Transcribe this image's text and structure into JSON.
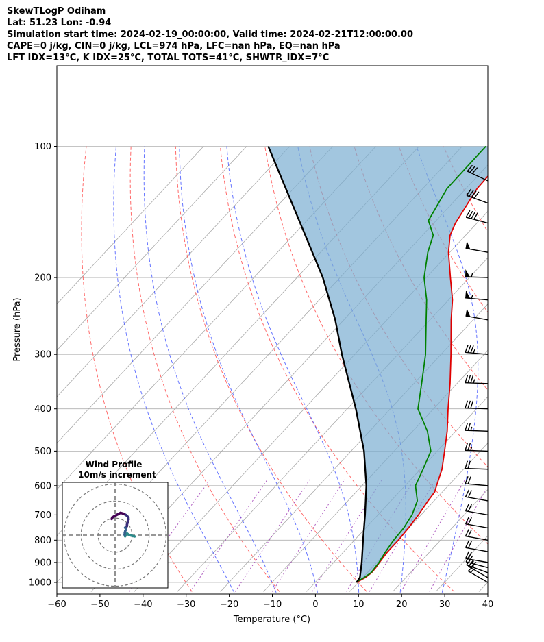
{
  "header": {
    "lines": [
      "SkewTLogP Odiham",
      "Lat: 51.23   Lon: -0.94",
      "Simulation start time: 2024-02-19_00:00:00, Valid time: 2024-02-21T12:00:00.00",
      "CAPE=0 j/kg, CIN=0 j/kg, LCL=974 hPa, LFC=nan hPa, EQ=nan hPa",
      "LFT IDX=13°C, K IDX=25°C, TOTAL TOTS=41°C, SHWTR_IDX=7°C"
    ]
  },
  "chart_data": {
    "type": "line",
    "subtype": "skew-t log-p",
    "xlabel": "Temperature (°C)",
    "ylabel": "Pressure (hPa)",
    "xlim": [
      -60,
      40
    ],
    "ylim": [
      1050,
      100
    ],
    "x_ticks": [
      -60,
      -50,
      -40,
      -30,
      -20,
      -10,
      0,
      10,
      20,
      30,
      40
    ],
    "x_tick_labels": [
      "−60",
      "−50",
      "−40",
      "−30",
      "−20",
      "−10",
      "0",
      "10",
      "20",
      "30",
      "40"
    ],
    "y_ticks": [
      1000,
      900,
      800,
      700,
      600,
      500,
      400,
      300,
      200,
      100
    ],
    "y_tick_labels": [
      "1000",
      "900",
      "800",
      "700",
      "600",
      "500",
      "400",
      "300",
      "200",
      "100"
    ],
    "y_scale": "log",
    "grid": true,
    "series": [
      {
        "role": "temperature",
        "color": "#e00000",
        "points": [
          [
            1000,
            9.6
          ],
          [
            975,
            10.6
          ],
          [
            950,
            11.0
          ],
          [
            925,
            10.9
          ],
          [
            900,
            10.6
          ],
          [
            850,
            10.2
          ],
          [
            800,
            10.2
          ],
          [
            750,
            9.9
          ],
          [
            700,
            9.4
          ],
          [
            650,
            8.6
          ],
          [
            620,
            8.2
          ],
          [
            600,
            7.3
          ],
          [
            550,
            5.0
          ],
          [
            500,
            1.7
          ],
          [
            450,
            -2.0
          ],
          [
            400,
            -6.6
          ],
          [
            350,
            -11.6
          ],
          [
            300,
            -17.7
          ],
          [
            250,
            -25.1
          ],
          [
            225,
            -29.1
          ],
          [
            200,
            -34.4
          ],
          [
            175,
            -40.3
          ],
          [
            160,
            -43.6
          ],
          [
            150,
            -45.0
          ],
          [
            125,
            -47.4
          ],
          [
            108,
            -47.8
          ],
          [
            100,
            -48.7
          ]
        ]
      },
      {
        "role": "dewpoint",
        "color": "#008000",
        "points": [
          [
            1000,
            9.4
          ],
          [
            975,
            10.3
          ],
          [
            950,
            10.9
          ],
          [
            925,
            10.7
          ],
          [
            900,
            10.5
          ],
          [
            850,
            9.7
          ],
          [
            800,
            9.1
          ],
          [
            750,
            8.8
          ],
          [
            700,
            7.9
          ],
          [
            650,
            6.1
          ],
          [
            600,
            2.4
          ],
          [
            550,
            0.6
          ],
          [
            500,
            -1.5
          ],
          [
            450,
            -6.6
          ],
          [
            400,
            -13.6
          ],
          [
            350,
            -18.2
          ],
          [
            300,
            -23.6
          ],
          [
            250,
            -30.9
          ],
          [
            225,
            -35.1
          ],
          [
            200,
            -40.5
          ],
          [
            175,
            -45.1
          ],
          [
            160,
            -47.5
          ],
          [
            148,
            -51.8
          ],
          [
            125,
            -54.4
          ],
          [
            100,
            -54.5
          ]
        ]
      },
      {
        "role": "parcel",
        "color": "#000000",
        "points": [
          [
            1000,
            9.6
          ],
          [
            974,
            9.3
          ],
          [
            900,
            6.5
          ],
          [
            800,
            2.0
          ],
          [
            700,
            -3.0
          ],
          [
            600,
            -9.0
          ],
          [
            500,
            -17.0
          ],
          [
            400,
            -28.0
          ],
          [
            300,
            -43.0
          ],
          [
            250,
            -52.0
          ],
          [
            200,
            -64.0
          ],
          [
            150,
            -81.0
          ],
          [
            100,
            -105.0
          ]
        ]
      }
    ],
    "shaded_area": {
      "between": [
        "parcel",
        "temperature"
      ],
      "color": "#7aaed1"
    },
    "winds": [
      {
        "p": 1000,
        "speed_kt": 15,
        "dir": 300
      },
      {
        "p": 975,
        "speed_kt": 20,
        "dir": 300
      },
      {
        "p": 950,
        "speed_kt": 20,
        "dir": 290
      },
      {
        "p": 925,
        "speed_kt": 20,
        "dir": 285
      },
      {
        "p": 900,
        "speed_kt": 20,
        "dir": 280
      },
      {
        "p": 850,
        "speed_kt": 20,
        "dir": 280
      },
      {
        "p": 800,
        "speed_kt": 20,
        "dir": 280
      },
      {
        "p": 750,
        "speed_kt": 20,
        "dir": 280
      },
      {
        "p": 700,
        "speed_kt": 20,
        "dir": 280
      },
      {
        "p": 650,
        "speed_kt": 20,
        "dir": 280
      },
      {
        "p": 600,
        "speed_kt": 20,
        "dir": 275
      },
      {
        "p": 550,
        "speed_kt": 20,
        "dir": 272
      },
      {
        "p": 500,
        "speed_kt": 25,
        "dir": 272
      },
      {
        "p": 450,
        "speed_kt": 25,
        "dir": 272
      },
      {
        "p": 400,
        "speed_kt": 30,
        "dir": 272
      },
      {
        "p": 350,
        "speed_kt": 35,
        "dir": 272
      },
      {
        "p": 300,
        "speed_kt": 35,
        "dir": 275
      },
      {
        "p": 250,
        "speed_kt": 50,
        "dir": 280
      },
      {
        "p": 225,
        "speed_kt": 55,
        "dir": 275
      },
      {
        "p": 200,
        "speed_kt": 55,
        "dir": 272
      },
      {
        "p": 175,
        "speed_kt": 50,
        "dir": 280
      },
      {
        "p": 150,
        "speed_kt": 40,
        "dir": 285
      },
      {
        "p": 135,
        "speed_kt": 40,
        "dir": 290
      },
      {
        "p": 120,
        "speed_kt": 30,
        "dir": 295
      }
    ],
    "hodograph": {
      "title": "Wind Profile",
      "subtitle": "10m/s increment",
      "rings_ms": [
        10,
        20,
        30
      ],
      "range_ms": 31,
      "colormap": [
        "#2d8a8a",
        "#35608d",
        "#3b2f7a",
        "#440154"
      ],
      "points": [
        [
          11.5,
          -0.8
        ],
        [
          9.5,
          -0.3
        ],
        [
          8.0,
          0.3
        ],
        [
          7.0,
          1.0
        ],
        [
          6.3,
          0.3
        ],
        [
          5.9,
          -0.7
        ],
        [
          5.6,
          0.2
        ],
        [
          5.7,
          1.5
        ],
        [
          6.0,
          2.5
        ],
        [
          6.5,
          3.6
        ],
        [
          5.9,
          4.4
        ],
        [
          6.9,
          5.2
        ],
        [
          7.0,
          6.3
        ],
        [
          7.4,
          7.4
        ],
        [
          7.9,
          9.3
        ],
        [
          7.8,
          10.5
        ],
        [
          6.6,
          11.7
        ],
        [
          5.0,
          12.6
        ],
        [
          3.2,
          13.1
        ],
        [
          1.5,
          12.2
        ],
        [
          -0.5,
          11.1
        ],
        [
          -1.7,
          10.4
        ],
        [
          -2.0,
          9.5
        ]
      ]
    }
  }
}
